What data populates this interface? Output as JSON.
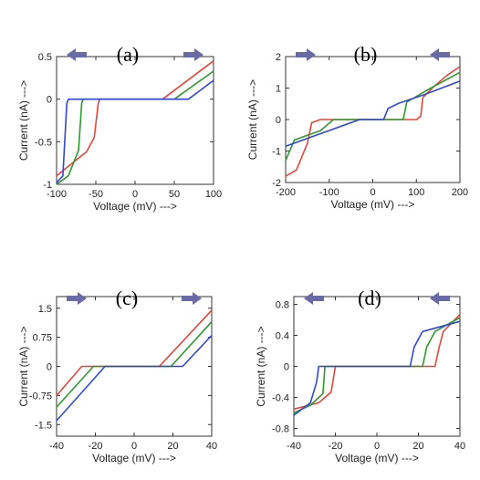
{
  "colors": {
    "red": "#e8453a",
    "green": "#2e9a2e",
    "blue": "#3347d6",
    "arrow": "#6a6aa6"
  },
  "chart_data": [
    {
      "type": "line",
      "panel_label": "(a)",
      "xlabel": "Voltage (mV) --->",
      "ylabel": "Current (nA) --->",
      "xlim": [
        -100,
        100
      ],
      "ylim": [
        -1,
        0.5
      ],
      "xticks": [
        -100,
        -50,
        0,
        50,
        100
      ],
      "yticks": [
        -1,
        -0.5,
        0,
        0.5
      ],
      "xtick_labels": [
        "-100",
        "-50",
        "0",
        "50",
        "100"
      ],
      "ytick_labels": [
        "-1",
        "-0.5",
        "0",
        "0.5"
      ],
      "arrows": [
        "left",
        "right"
      ],
      "series": [
        {
          "color": "red",
          "points": [
            [
              -100,
              -0.9
            ],
            [
              -80,
              -0.75
            ],
            [
              -62,
              -0.62
            ],
            [
              -52,
              -0.45
            ],
            [
              -47,
              -0.05
            ],
            [
              -45,
              0
            ],
            [
              35,
              0
            ],
            [
              100,
              0.45
            ]
          ]
        },
        {
          "color": "green",
          "points": [
            [
              -100,
              -1
            ],
            [
              -85,
              -0.9
            ],
            [
              -72,
              -0.6
            ],
            [
              -68,
              -0.05
            ],
            [
              -66,
              0
            ],
            [
              50,
              0
            ],
            [
              100,
              0.33
            ]
          ]
        },
        {
          "color": "blue",
          "points": [
            [
              -100,
              -0.98
            ],
            [
              -92,
              -0.9
            ],
            [
              -87,
              -0.05
            ],
            [
              -85,
              0
            ],
            [
              68,
              0
            ],
            [
              100,
              0.22
            ]
          ]
        }
      ]
    },
    {
      "type": "line",
      "panel_label": "(b)",
      "xlabel": "Voltage (mV) --->",
      "ylabel": "Current (nA) --->",
      "xlim": [
        -200,
        200
      ],
      "ylim": [
        -2,
        2
      ],
      "xticks": [
        -200,
        -100,
        0,
        100,
        200
      ],
      "yticks": [
        -2,
        -1,
        0,
        1,
        2
      ],
      "xtick_labels": [
        "-200",
        "-100",
        "0",
        "100",
        "200"
      ],
      "ytick_labels": [
        "-2",
        "-1",
        "0",
        "1",
        "2"
      ],
      "arrows": [
        "right",
        "left"
      ],
      "series": [
        {
          "color": "red",
          "points": [
            [
              -200,
              -1.8
            ],
            [
              -175,
              -1.6
            ],
            [
              -150,
              -0.75
            ],
            [
              -140,
              -0.1
            ],
            [
              -120,
              0
            ],
            [
              100,
              0
            ],
            [
              110,
              0.1
            ],
            [
              115,
              0.7
            ],
            [
              140,
              1.05
            ],
            [
              170,
              1.4
            ],
            [
              200,
              1.68
            ]
          ]
        },
        {
          "color": "green",
          "points": [
            [
              -200,
              -1.3
            ],
            [
              -180,
              -0.65
            ],
            [
              -120,
              -0.35
            ],
            [
              -90,
              0
            ],
            [
              70,
              0
            ],
            [
              78,
              0.55
            ],
            [
              120,
              0.9
            ],
            [
              160,
              1.2
            ],
            [
              200,
              1.5
            ]
          ]
        },
        {
          "color": "blue",
          "points": [
            [
              -200,
              -0.85
            ],
            [
              -30,
              0
            ],
            [
              25,
              0
            ],
            [
              35,
              0.35
            ],
            [
              60,
              0.52
            ],
            [
              120,
              0.8
            ],
            [
              200,
              1.22
            ]
          ]
        }
      ]
    },
    {
      "type": "line",
      "panel_label": "(c)",
      "xlabel": "Voltage (mV) --->",
      "ylabel": "Current (nA) --->",
      "xlim": [
        -40,
        40
      ],
      "ylim": [
        -1.8,
        1.8
      ],
      "xticks": [
        -40,
        -20,
        0,
        20,
        40
      ],
      "yticks": [
        -1.5,
        -0.75,
        0,
        0.75,
        1.5
      ],
      "xtick_labels": [
        "-40",
        "-20",
        "0",
        "20",
        "40"
      ],
      "ytick_labels": [
        "-1.5",
        "-0.75",
        "0",
        "0.75",
        "1.5"
      ],
      "arrows": [
        "right",
        "right"
      ],
      "series": [
        {
          "color": "red",
          "points": [
            [
              -40,
              -0.75
            ],
            [
              -27,
              0
            ],
            [
              13,
              0
            ],
            [
              40,
              1.45
            ]
          ]
        },
        {
          "color": "green",
          "points": [
            [
              -40,
              -1.05
            ],
            [
              -21,
              0
            ],
            [
              19,
              0
            ],
            [
              40,
              1.15
            ]
          ]
        },
        {
          "color": "blue",
          "points": [
            [
              -40,
              -1.4
            ],
            [
              -15,
              0
            ],
            [
              25,
              0
            ],
            [
              40,
              0.8
            ]
          ]
        }
      ]
    },
    {
      "type": "line",
      "panel_label": "(d)",
      "xlabel": "Voltage (mV) --->",
      "ylabel": "Current (nA) --->",
      "xlim": [
        -40,
        40
      ],
      "ylim": [
        -0.9,
        0.9
      ],
      "xticks": [
        -40,
        -20,
        0,
        20,
        40
      ],
      "yticks": [
        -0.8,
        -0.4,
        0,
        0.4,
        0.8
      ],
      "xtick_labels": [
        "-40",
        "-20",
        "0",
        "20",
        "40"
      ],
      "ytick_labels": [
        "-0.8",
        "-0.4",
        "0",
        "0.4",
        "0.8"
      ],
      "arrows": [
        "left",
        "left"
      ],
      "series": [
        {
          "color": "red",
          "points": [
            [
              -40,
              -0.55
            ],
            [
              -28,
              -0.47
            ],
            [
              -22,
              -0.33
            ],
            [
              -20,
              0
            ],
            [
              28,
              0
            ],
            [
              30,
              0.25
            ],
            [
              32,
              0.45
            ],
            [
              40,
              0.67
            ]
          ]
        },
        {
          "color": "green",
          "points": [
            [
              -40,
              -0.6
            ],
            [
              -32,
              -0.5
            ],
            [
              -26,
              -0.35
            ],
            [
              -25,
              0
            ],
            [
              22,
              0
            ],
            [
              24,
              0.25
            ],
            [
              28,
              0.45
            ],
            [
              40,
              0.63
            ]
          ]
        },
        {
          "color": "blue",
          "points": [
            [
              -40,
              -0.63
            ],
            [
              -32,
              -0.47
            ],
            [
              -29,
              -0.2
            ],
            [
              -28,
              0
            ],
            [
              16,
              0
            ],
            [
              18,
              0.25
            ],
            [
              22,
              0.45
            ],
            [
              40,
              0.58
            ]
          ]
        }
      ]
    }
  ]
}
